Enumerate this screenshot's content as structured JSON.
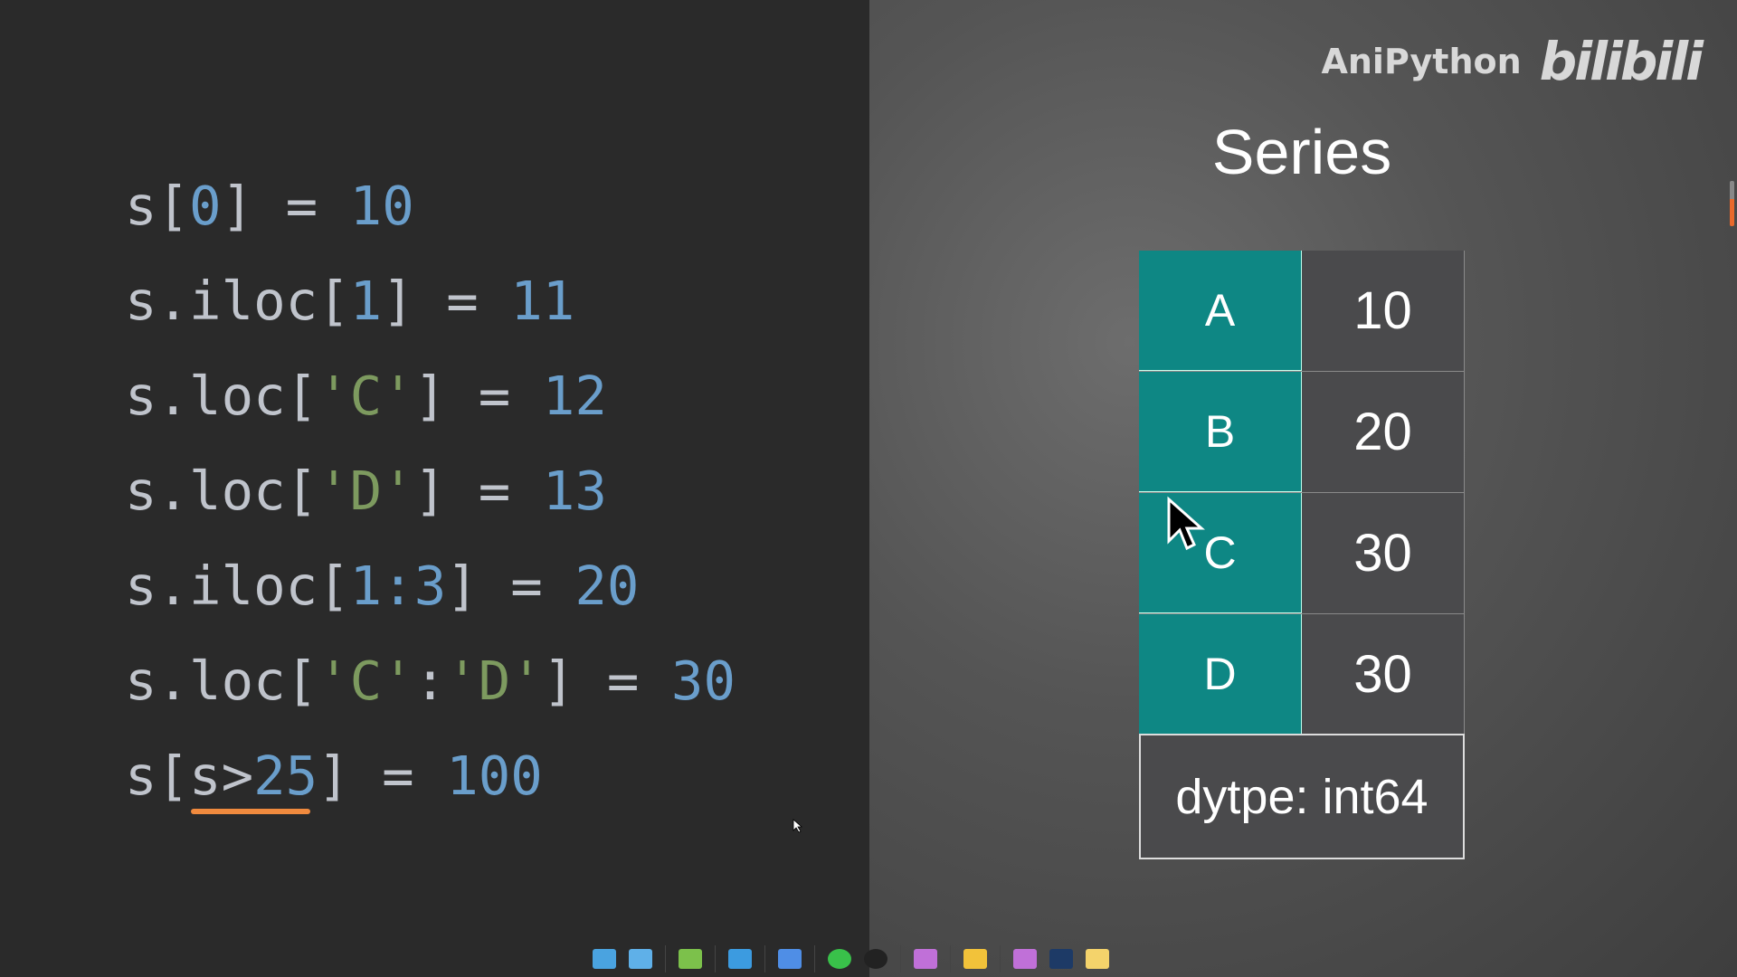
{
  "code_lines": [
    [
      [
        "s[",
        "d"
      ],
      [
        "0",
        "n"
      ],
      [
        "] = ",
        "d"
      ],
      [
        "10",
        "n"
      ]
    ],
    [
      [
        "s.iloc[",
        "d"
      ],
      [
        "1",
        "n"
      ],
      [
        "] = ",
        "d"
      ],
      [
        "11",
        "n"
      ]
    ],
    [
      [
        "s.loc[",
        "d"
      ],
      [
        "'C'",
        "s"
      ],
      [
        "] = ",
        "d"
      ],
      [
        "12",
        "n"
      ]
    ],
    [
      [
        "s.loc[",
        "d"
      ],
      [
        "'D'",
        "s"
      ],
      [
        "] = ",
        "d"
      ],
      [
        "13",
        "n"
      ]
    ],
    [
      [
        "s.iloc[",
        "d"
      ],
      [
        "1:3",
        "n"
      ],
      [
        "] = ",
        "d"
      ],
      [
        "20",
        "n"
      ]
    ],
    [
      [
        "s.loc[",
        "d"
      ],
      [
        "'C'",
        "s"
      ],
      [
        ":",
        "d"
      ],
      [
        "'D'",
        "s"
      ],
      [
        "] = ",
        "d"
      ],
      [
        "30",
        "n"
      ]
    ],
    [
      [
        "s[s>",
        "d"
      ],
      [
        "25",
        "n"
      ],
      [
        "] = ",
        "d"
      ],
      [
        "100",
        "n"
      ]
    ]
  ],
  "brand": {
    "name": "AniPython",
    "logo": "bilibili"
  },
  "series": {
    "title": "Series",
    "rows": [
      {
        "key": "A",
        "value": "10"
      },
      {
        "key": "B",
        "value": "20"
      },
      {
        "key": "C",
        "value": "30"
      },
      {
        "key": "D",
        "value": "30"
      }
    ],
    "dtype": "dytpe: int64"
  },
  "colors": {
    "key_cell": "#0e8784",
    "value_cell": "#4a4a4c",
    "number": "#6a9ecb",
    "string": "#7d9a5f",
    "underline": "#f08a3e"
  },
  "taskbar_icons": [
    "computer-icon",
    "control-panel-icon",
    "folder-green-icon",
    "folder-blue-icon",
    "folder-edge-icon",
    "wechat-icon",
    "qq-icon",
    "folder-tools-icon",
    "folder-yellow-icon",
    "folder-tools-icon-2",
    "app-icon",
    "notes-icon"
  ]
}
